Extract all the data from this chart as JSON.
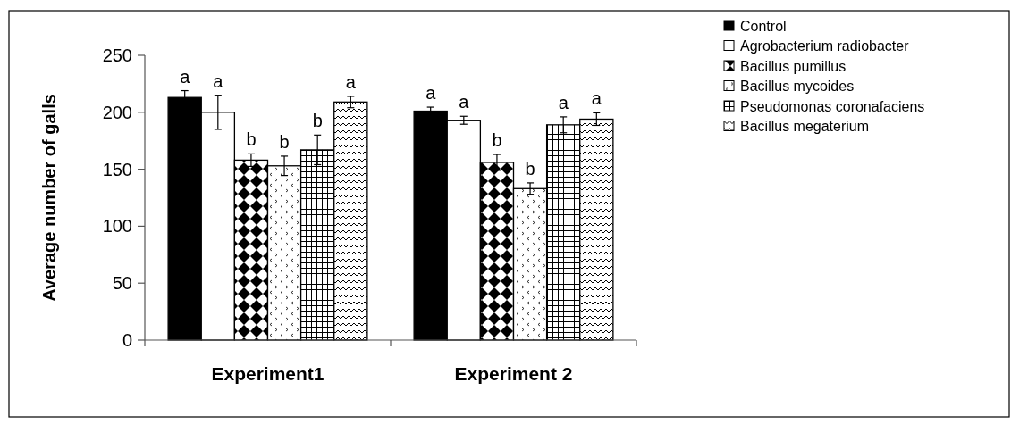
{
  "chart_data": {
    "type": "bar",
    "ylabel": "Average number of galls",
    "categories": [
      "Experiment1",
      "Experiment 2"
    ],
    "ylim": [
      0,
      250
    ],
    "yticks": [
      0,
      50,
      100,
      150,
      200,
      250
    ],
    "grid": false,
    "legend": "top right",
    "series": [
      {
        "name": "Control",
        "color": "#000000",
        "values": [
          213,
          201
        ],
        "errors": [
          6,
          3.5
        ],
        "value_labels": [
          "a",
          "a"
        ]
      },
      {
        "name": "Agrobacterium radiobacter",
        "color": "#ffffff",
        "values": [
          200,
          193
        ],
        "errors": [
          15,
          3.5
        ],
        "value_labels": [
          "a",
          "a"
        ]
      },
      {
        "name": "Bacillus pumillus",
        "color": "#000000",
        "values": [
          158,
          156
        ],
        "errors": [
          5.5,
          7
        ],
        "value_labels": [
          "b",
          "b"
        ]
      },
      {
        "name": "Bacillus mycoides",
        "color": "#000000",
        "values": [
          153,
          133
        ],
        "errors": [
          8.5,
          5
        ],
        "value_labels": [
          "b",
          "b"
        ]
      },
      {
        "name": "Pseudomonas coronafaciens",
        "color": "#000000",
        "values": [
          167,
          189
        ],
        "errors": [
          13,
          7
        ],
        "value_labels": [
          "b",
          "a"
        ]
      },
      {
        "name": "Bacillus megaterium",
        "color": "#000000",
        "values": [
          209,
          194
        ],
        "errors": [
          5,
          5.5
        ],
        "value_labels": [
          "a",
          "a"
        ]
      }
    ]
  }
}
